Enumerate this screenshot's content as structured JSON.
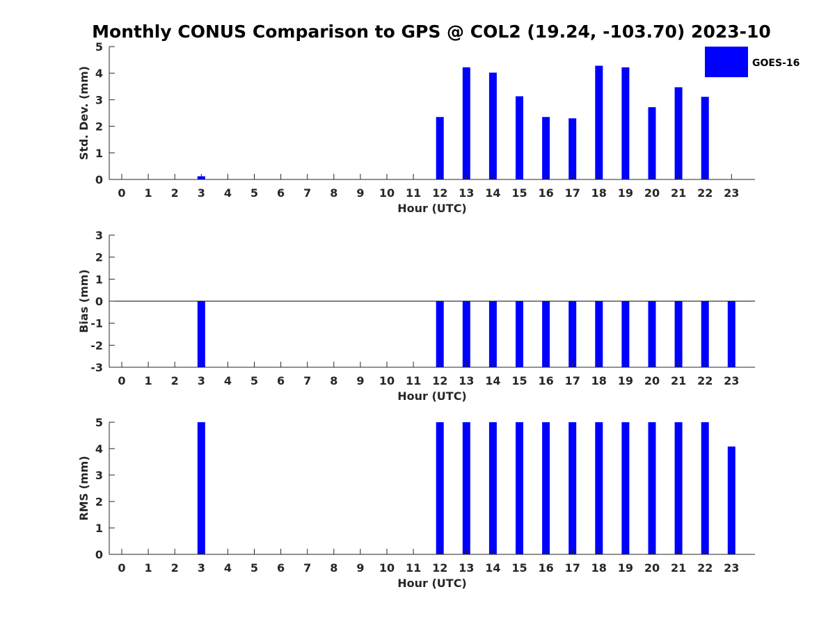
{
  "title": "Monthly CONUS Comparison to GPS @ COL2 (19.24, -103.70) 2023-10",
  "colors": {
    "bar": "#0000ff",
    "axis": "#262626",
    "zero_line": "#000000"
  },
  "legend": {
    "label": "GOES-16",
    "placement": "top-right"
  },
  "chart_data": [
    {
      "type": "bar",
      "xlabel": "Hour (UTC)",
      "ylabel": "Std. Dev. (mm)",
      "categories": [
        "0",
        "1",
        "2",
        "3",
        "4",
        "5",
        "6",
        "7",
        "8",
        "9",
        "10",
        "11",
        "12",
        "13",
        "14",
        "15",
        "16",
        "17",
        "18",
        "19",
        "20",
        "21",
        "22",
        "23"
      ],
      "series": [
        {
          "name": "GOES-16",
          "values": [
            null,
            null,
            null,
            0.12,
            null,
            null,
            null,
            null,
            null,
            null,
            null,
            null,
            2.35,
            4.22,
            4.02,
            3.13,
            2.35,
            2.3,
            4.28,
            4.22,
            2.72,
            3.47,
            3.11,
            null
          ]
        }
      ],
      "ylim": [
        0,
        5
      ],
      "yticks": [
        0,
        1,
        2,
        3,
        4,
        5
      ],
      "grid": false
    },
    {
      "type": "bar",
      "xlabel": "Hour (UTC)",
      "ylabel": "Bias (mm)",
      "categories": [
        "0",
        "1",
        "2",
        "3",
        "4",
        "5",
        "6",
        "7",
        "8",
        "9",
        "10",
        "11",
        "12",
        "13",
        "14",
        "15",
        "16",
        "17",
        "18",
        "19",
        "20",
        "21",
        "22",
        "23"
      ],
      "series": [
        {
          "name": "GOES-16",
          "values": [
            null,
            null,
            null,
            -3,
            null,
            null,
            null,
            null,
            null,
            null,
            null,
            null,
            -3,
            -3,
            -3,
            -3,
            -3,
            -3,
            -3,
            -3,
            -3,
            -3,
            -3,
            -3
          ]
        }
      ],
      "ylim": [
        -3,
        3
      ],
      "yticks": [
        -3,
        -2,
        -1,
        0,
        1,
        2,
        3
      ],
      "zero_line": true,
      "grid": false
    },
    {
      "type": "bar",
      "xlabel": "Hour (UTC)",
      "ylabel": "RMS (mm)",
      "categories": [
        "0",
        "1",
        "2",
        "3",
        "4",
        "5",
        "6",
        "7",
        "8",
        "9",
        "10",
        "11",
        "12",
        "13",
        "14",
        "15",
        "16",
        "17",
        "18",
        "19",
        "20",
        "21",
        "22",
        "23"
      ],
      "series": [
        {
          "name": "GOES-16",
          "values": [
            null,
            null,
            null,
            5,
            null,
            null,
            null,
            null,
            null,
            null,
            null,
            null,
            5,
            5,
            5,
            5,
            5,
            5,
            5,
            5,
            5,
            5,
            5,
            4.08
          ]
        }
      ],
      "ylim": [
        0,
        5
      ],
      "yticks": [
        0,
        1,
        2,
        3,
        4,
        5
      ],
      "grid": false
    }
  ]
}
